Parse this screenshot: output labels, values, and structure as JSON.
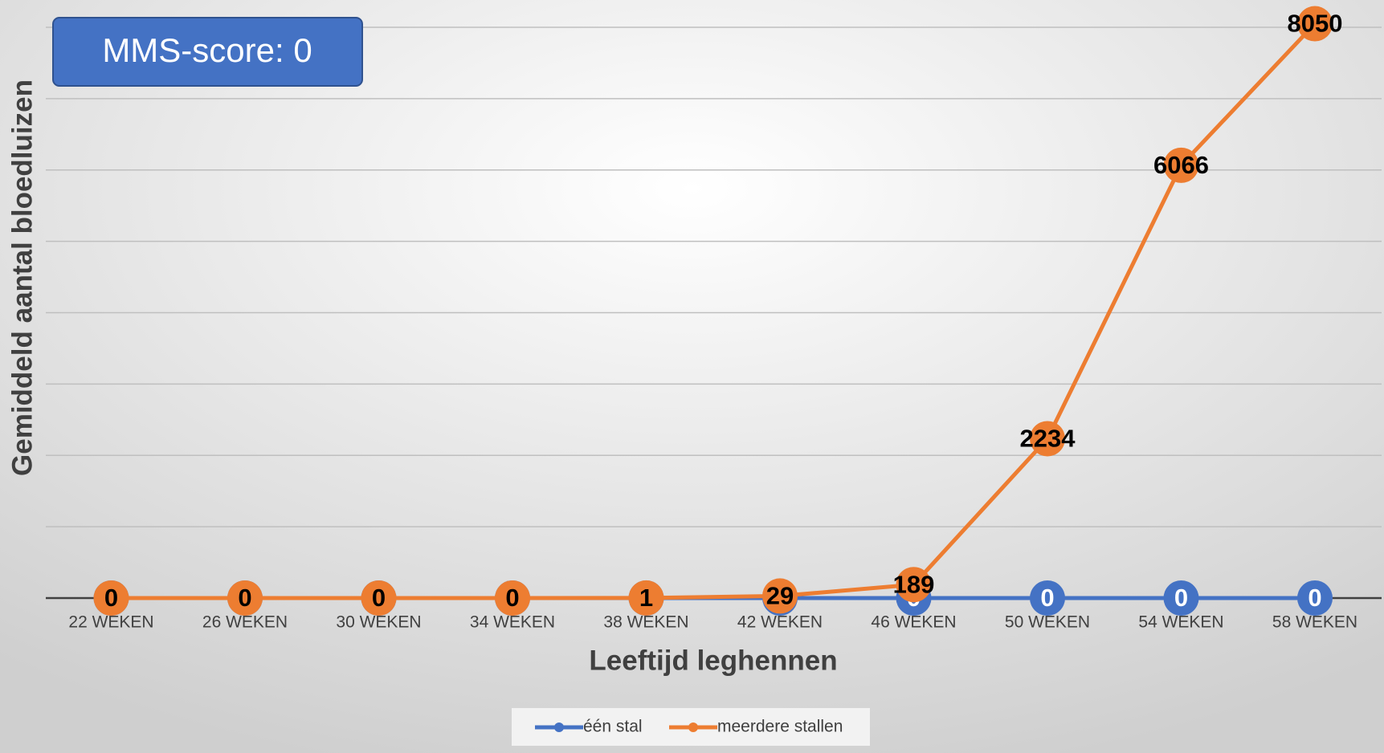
{
  "chart_data": {
    "type": "line",
    "annotation": "MMS-score: 0",
    "y_label": "Gemiddeld aantal bloedluizen",
    "x_label": "Leeftijd leghennen",
    "categories": [
      "22 WEKEN",
      "26 WEKEN",
      "30 WEKEN",
      "34 WEKEN",
      "38 WEKEN",
      "42 WEKEN",
      "46 WEKEN",
      "50 WEKEN",
      "54 WEKEN",
      "58 WEKEN"
    ],
    "series": [
      {
        "name": "één stal",
        "color": "#4472c4",
        "values": [
          0,
          0,
          0,
          0,
          0,
          0,
          0,
          0,
          0,
          0
        ]
      },
      {
        "name": "meerdere stallen",
        "color": "#ed7d31",
        "values": [
          0,
          0,
          0,
          0,
          1,
          29,
          189,
          2234,
          6066,
          8050
        ]
      }
    ],
    "ylim": [
      0,
      8000
    ],
    "yticks": [
      0,
      1000,
      2000,
      3000,
      4000,
      5000,
      6000,
      7000,
      8000
    ],
    "grid": true
  }
}
